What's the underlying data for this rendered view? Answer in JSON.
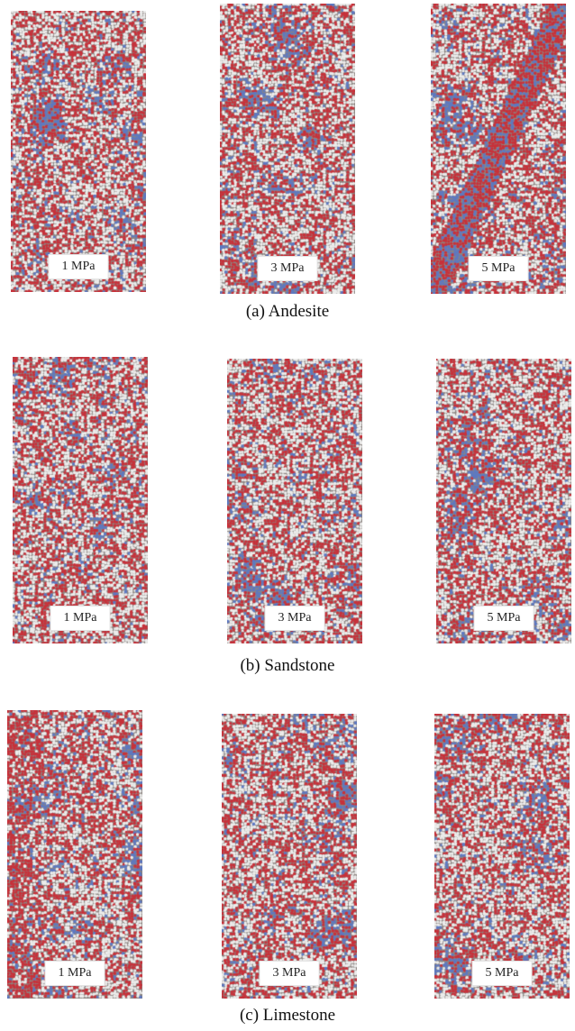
{
  "groups": [
    {
      "caption": "(a) Andesite",
      "panels": [
        {
          "label": "1 MPa"
        },
        {
          "label": "3 MPa"
        },
        {
          "label": "5 MPa"
        }
      ]
    },
    {
      "caption": "(b) Sandstone",
      "panels": [
        {
          "label": "1 MPa"
        },
        {
          "label": "3 MPa"
        },
        {
          "label": "5 MPa"
        }
      ]
    },
    {
      "caption": "(c) Limestone",
      "panels": [
        {
          "label": "1 MPa"
        },
        {
          "label": "3 MPa"
        },
        {
          "label": "5 MPa"
        }
      ]
    }
  ],
  "colors": {
    "red_particle": "#c8313a",
    "blue_particle": "#5d79c2",
    "white_particle": "#ededec",
    "gap": "#8d8582"
  }
}
